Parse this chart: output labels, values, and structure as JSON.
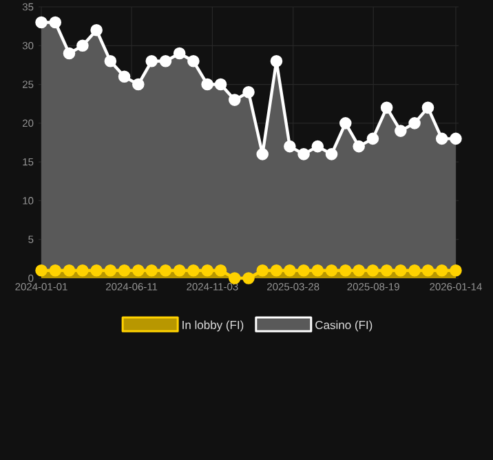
{
  "chart_data": {
    "type": "area",
    "x": [
      "2024-01-01",
      "2024-01-26",
      "2024-02-20",
      "2024-03-15",
      "2024-04-09",
      "2024-05-04",
      "2024-05-29",
      "2024-06-23",
      "2024-07-17",
      "2024-08-11",
      "2024-09-05",
      "2024-09-30",
      "2024-10-25",
      "2024-11-18",
      "2024-12-13",
      "2025-01-07",
      "2025-02-01",
      "2025-02-26",
      "2025-03-22",
      "2025-04-16",
      "2025-05-11",
      "2025-06-05",
      "2025-06-30",
      "2025-07-24",
      "2025-08-18",
      "2025-09-12",
      "2025-10-07",
      "2025-11-01",
      "2025-11-25",
      "2025-12-20",
      "2026-01-14"
    ],
    "series": [
      {
        "name": "In lobby (FI)",
        "color": "#ffd200",
        "values": [
          1,
          1,
          1,
          1,
          1,
          1,
          1,
          1,
          1,
          1,
          1,
          1,
          1,
          1,
          0,
          0,
          1,
          1,
          1,
          1,
          1,
          1,
          1,
          1,
          1,
          1,
          1,
          1,
          1,
          1,
          1
        ]
      },
      {
        "name": "Casino (FI)",
        "color": "#ffffff",
        "values": [
          33,
          33,
          29,
          30,
          32,
          28,
          26,
          25,
          28,
          28,
          29,
          28,
          25,
          25,
          23,
          24,
          16,
          28,
          17,
          16,
          17,
          16,
          20,
          17,
          18,
          22,
          19,
          20,
          22,
          18,
          18
        ]
      }
    ],
    "xlim": [
      "2023-12-27",
      "2026-01-19"
    ],
    "xticks": [
      "2024-01-01",
      "2024-06-11",
      "2024-11-03",
      "2025-03-28",
      "2025-08-19",
      "2026-01-14"
    ],
    "ylim": [
      0,
      35
    ],
    "yticks": [
      0,
      5,
      10,
      15,
      20,
      25,
      30,
      35
    ],
    "grid": true,
    "legend": "bottom",
    "marker": "circle"
  }
}
